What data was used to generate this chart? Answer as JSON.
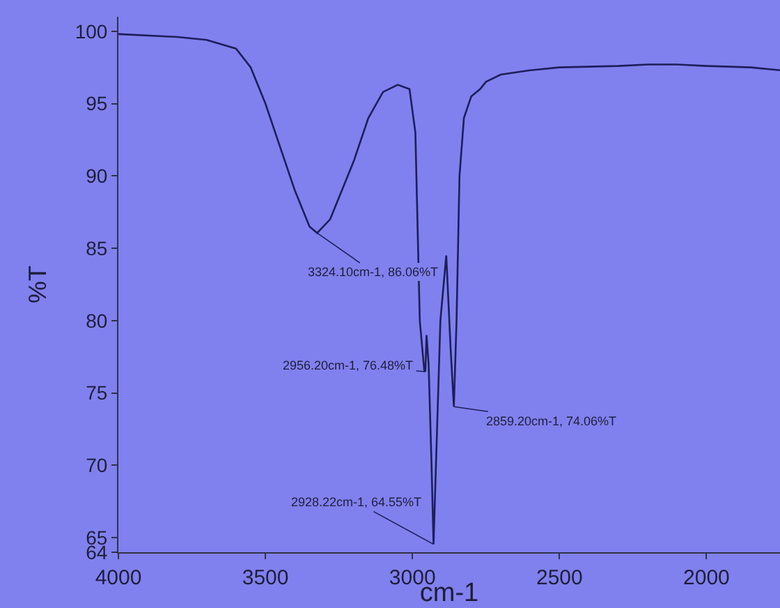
{
  "chart_data": {
    "type": "line",
    "xlabel": "cm-1",
    "ylabel": "%T",
    "x": [
      4000,
      3800,
      3700,
      3600,
      3550,
      3500,
      3450,
      3400,
      3350,
      3324.1,
      3280,
      3200,
      3150,
      3100,
      3050,
      3010,
      2990,
      2975,
      2960,
      2956.2,
      2952,
      2945,
      2935,
      2928.22,
      2920,
      2905,
      2885,
      2870,
      2859.2,
      2850,
      2840,
      2825,
      2800,
      2770,
      2750,
      2700,
      2600,
      2500,
      2300,
      2200,
      2100,
      2000,
      1850,
      1750
    ],
    "series": [
      {
        "color": "#1e1e5a",
        "values": [
          99.8,
          99.6,
          99.4,
          98.8,
          97.5,
          95,
          92,
          89,
          86.5,
          86.06,
          87,
          91,
          94,
          95.8,
          96.3,
          96.0,
          93,
          80,
          76.6,
          76.48,
          79,
          77,
          70,
          64.55,
          70,
          80,
          84.5,
          78,
          74.06,
          80,
          90,
          94,
          95.5,
          96,
          96.5,
          97,
          97.3,
          97.5,
          97.6,
          97.7,
          97.7,
          97.6,
          97.5,
          97.3
        ]
      }
    ],
    "annotations": [
      {
        "text": "3324.10cm-1, 86.06%T",
        "x": 3324.1,
        "y": 86.06
      },
      {
        "text": "2956.20cm-1, 76.48%T",
        "x": 2956.2,
        "y": 76.48
      },
      {
        "text": "2859.20cm-1, 74.06%T",
        "x": 2859.2,
        "y": 74.06
      },
      {
        "text": "2928.22cm-1, 64.55%T",
        "x": 2928.22,
        "y": 64.55
      }
    ],
    "xlim": [
      4000,
      1750
    ],
    "xticks": [
      4000,
      3500,
      3000,
      2500,
      2000
    ],
    "ylim": [
      64,
      101
    ],
    "yticks": [
      64,
      65,
      70,
      75,
      80,
      85,
      90,
      95,
      100
    ],
    "grid": false,
    "marker": "none",
    "line_style": "solid"
  }
}
